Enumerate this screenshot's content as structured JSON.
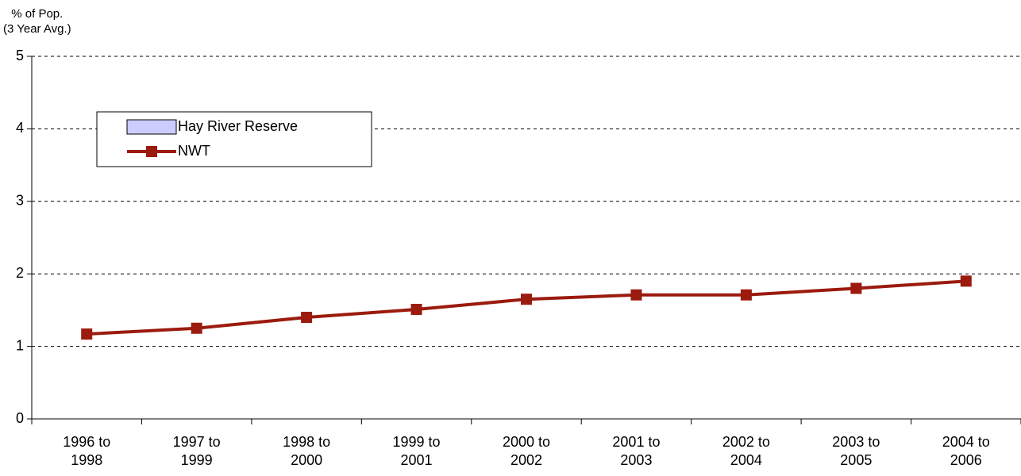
{
  "chart_data": {
    "type": "line",
    "y_label": "% of Pop.\n(3 Year Avg.)",
    "categories": [
      "1996 to 1998",
      "1997 to 1999",
      "1998 to 2000",
      "1999 to 2001",
      "2000 to 2002",
      "2001 to 2003",
      "2002 to 2004",
      "2003 to 2005",
      "2004 to 2006"
    ],
    "series": [
      {
        "name": "Hay River Reserve",
        "type": "bar",
        "color": "#ccccff",
        "values": [
          null,
          null,
          null,
          null,
          null,
          null,
          null,
          null,
          null
        ]
      },
      {
        "name": "NWT",
        "type": "line",
        "color": "#9b1b0e",
        "values": [
          1.17,
          1.25,
          1.4,
          1.51,
          1.65,
          1.71,
          1.71,
          1.8,
          1.9
        ]
      }
    ],
    "ylim": [
      0,
      5
    ],
    "yticks": [
      0,
      1,
      2,
      3,
      4,
      5
    ],
    "grid": true
  }
}
